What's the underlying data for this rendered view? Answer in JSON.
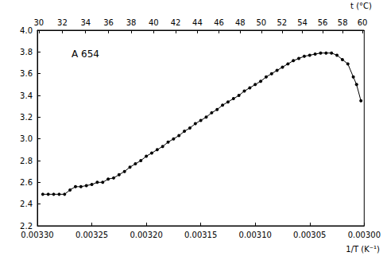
{
  "chart_data": {
    "type": "line",
    "annotation": "A 654",
    "xlabel": "1/T (K⁻¹)",
    "x2label": "t (°C)",
    "xlim": [
      0.0033,
      0.003
    ],
    "xticks": [
      {
        "value": 0.0033,
        "label": "0.00330"
      },
      {
        "value": 0.00325,
        "label": "0.00325"
      },
      {
        "value": 0.0032,
        "label": "0.00320"
      },
      {
        "value": 0.00315,
        "label": "0.00315"
      },
      {
        "value": 0.0031,
        "label": "0.00310"
      },
      {
        "value": 0.00305,
        "label": "0.00305"
      },
      {
        "value": 0.003,
        "label": "0.00300"
      }
    ],
    "x2lim": [
      0.0033,
      0.003
    ],
    "x2ticks": [
      {
        "value": 0.0032987,
        "label": "30"
      },
      {
        "value": 0.0032771,
        "label": "32"
      },
      {
        "value": 0.0032557,
        "label": "34"
      },
      {
        "value": 0.0032347,
        "label": "36"
      },
      {
        "value": 0.0032139,
        "label": "38"
      },
      {
        "value": 0.0031933,
        "label": "40"
      },
      {
        "value": 0.0031731,
        "label": "42"
      },
      {
        "value": 0.0031531,
        "label": "44"
      },
      {
        "value": 0.0031333,
        "label": "46"
      },
      {
        "value": 0.0031138,
        "label": "48"
      },
      {
        "value": 0.0030945,
        "label": "50"
      },
      {
        "value": 0.0030755,
        "label": "52"
      },
      {
        "value": 0.0030567,
        "label": "54"
      },
      {
        "value": 0.0030381,
        "label": "56"
      },
      {
        "value": 0.0030198,
        "label": "58"
      },
      {
        "value": 0.0030017,
        "label": "60"
      }
    ],
    "ylim": [
      2.2,
      4.0
    ],
    "yticks": [
      2.2,
      2.4,
      2.6,
      2.8,
      {
        "value": 3.0,
        "label": "3.0"
      },
      3.2,
      3.4,
      3.6,
      3.8,
      {
        "value": 4.0,
        "label": "4.0"
      }
    ],
    "grid": false,
    "color": "#000000",
    "marker": "circle",
    "line_style": "solid",
    "x": [
      0.003295,
      0.00329,
      0.003285,
      0.00328,
      0.003275,
      0.00327,
      0.003265,
      0.00326,
      0.003255,
      0.00325,
      0.003245,
      0.00324,
      0.003235,
      0.00323,
      0.003225,
      0.00322,
      0.003215,
      0.00321,
      0.003205,
      0.0032,
      0.003195,
      0.00319,
      0.003185,
      0.00318,
      0.003175,
      0.00317,
      0.003165,
      0.00316,
      0.003155,
      0.00315,
      0.003145,
      0.00314,
      0.003135,
      0.00313,
      0.003125,
      0.00312,
      0.003115,
      0.00311,
      0.003105,
      0.0031,
      0.003095,
      0.00309,
      0.003085,
      0.00308,
      0.003075,
      0.00307,
      0.003065,
      0.00306,
      0.003055,
      0.00305,
      0.003045,
      0.00304,
      0.003035,
      0.00303,
      0.003025,
      0.00302,
      0.003015,
      0.00301,
      0.003007,
      0.003003
    ],
    "values": [
      2.49,
      2.49,
      2.49,
      2.49,
      2.49,
      2.53,
      2.56,
      2.56,
      2.57,
      2.58,
      2.6,
      2.6,
      2.63,
      2.64,
      2.67,
      2.7,
      2.74,
      2.77,
      2.8,
      2.84,
      2.87,
      2.9,
      2.93,
      2.97,
      3.0,
      3.03,
      3.07,
      3.1,
      3.14,
      3.17,
      3.2,
      3.24,
      3.27,
      3.31,
      3.34,
      3.37,
      3.4,
      3.44,
      3.47,
      3.5,
      3.53,
      3.57,
      3.6,
      3.63,
      3.66,
      3.69,
      3.72,
      3.74,
      3.76,
      3.77,
      3.78,
      3.79,
      3.79,
      3.79,
      3.77,
      3.73,
      3.69,
      3.57,
      3.5,
      3.35
    ]
  }
}
